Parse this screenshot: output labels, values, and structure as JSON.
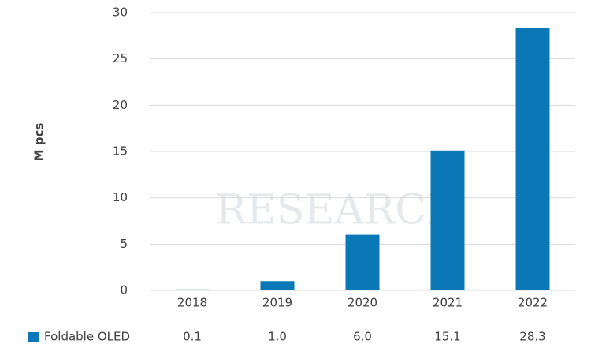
{
  "chart_data": {
    "type": "bar",
    "watermark": "RESEARCH",
    "y_label": "M pcs",
    "categories": [
      "2018",
      "2019",
      "2020",
      "2021",
      "2022"
    ],
    "series": [
      {
        "name": "Foldable OLED",
        "color": "#0a78b6",
        "values": [
          0.1,
          1.0,
          6.0,
          15.1,
          28.3
        ],
        "value_labels": [
          "0.1",
          "1.0",
          "6.0",
          "15.1",
          "28.3"
        ]
      }
    ],
    "ylim": [
      0,
      30
    ],
    "yticks": [
      0,
      5,
      10,
      15,
      20,
      25,
      30
    ],
    "grid": true
  }
}
